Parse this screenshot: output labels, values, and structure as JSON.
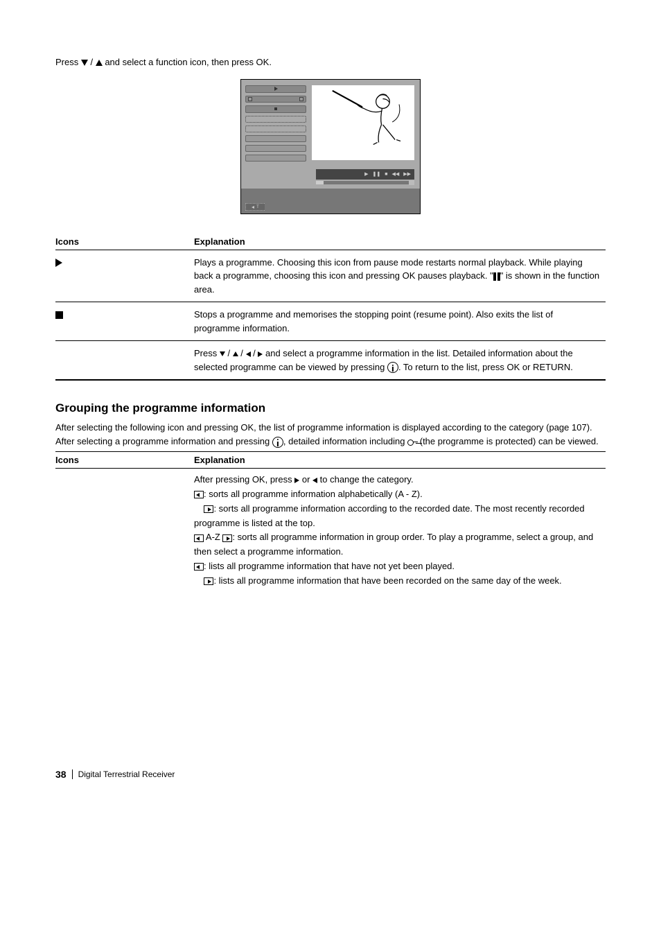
{
  "intro": {
    "line1_prefix": "Press ",
    "line1_suffix": " and select a function icon, then press OK.",
    "arrow1_name": "arrow-down",
    "arrow2_name": "arrow-up"
  },
  "table1": {
    "headers": [
      "Icons",
      "Explanation"
    ],
    "rows": [
      {
        "icon_html": "play",
        "text": "Plays a programme. Choosing this icon from pause mode restarts normal playback. While playing back a programme, choosing this icon and pressing OK pauses playback. \"",
        "text_suffix": "\" is shown in the function area."
      },
      {
        "icon_html": "stop",
        "text": "Stops a programme and memorises the stopping point (resume point). Also exits the list of programme information."
      },
      {
        "icon_html": "arrows",
        "text_prefix": "Press ",
        "text_mid": " and select a programme information in the list. Detailed information about the selected programme can be viewed by pressing ",
        "text_suffix": ". To return to the list, press OK or RETURN.",
        "info_name": "info-icon"
      }
    ]
  },
  "section_grouping": {
    "title": "Grouping the programme information",
    "para_prefix": "After selecting the following icon and pressing OK, the list of programme information is displayed according to the category (page 107). After selecting a programme information and pressing ",
    "para_mid": ", detailed information including ",
    "para_suffix": " (the programme is protected) can be viewed.",
    "info_name": "info-icon",
    "key_name": "key-icon"
  },
  "table2": {
    "headers": [
      "Icons",
      "Explanation"
    ],
    "rows": [
      {
        "lines": [
          {
            "segments": [
              {
                "type": "text",
                "value": "After pressing OK, press "
              },
              {
                "type": "arrow-right"
              },
              {
                "type": "text",
                "value": " or "
              },
              {
                "type": "arrow-left"
              },
              {
                "type": "text",
                "value": " to change the category."
              }
            ]
          },
          {
            "segments": [
              {
                "type": "box-left"
              },
              {
                "type": "text",
                "value": ": sorts all programme information alphabetically (A - Z)."
              }
            ]
          },
          {
            "segments": [
              {
                "type": "nbsp"
              },
              {
                "type": "box-right"
              },
              {
                "type": "text",
                "value": ": sorts all programme information according to the recorded date. The most recently recorded programme is listed at the top."
              }
            ]
          },
          {
            "segments": [
              {
                "type": "box-left"
              },
              {
                "type": "text",
                "value": " A-Z "
              },
              {
                "type": "box-right"
              },
              {
                "type": "text",
                "value": ": sorts all programme information in group order. To play a programme, select a group, and then select a programme information."
              }
            ]
          },
          {
            "segments": [
              {
                "type": "box-left"
              },
              {
                "type": "text",
                "value": ": lists all programme information that have not yet been played."
              }
            ]
          },
          {
            "segments": [
              {
                "type": "nbsp"
              },
              {
                "type": "box-right"
              },
              {
                "type": "text",
                "value": ": lists all programme information that have been recorded on the same day of the week."
              }
            ]
          }
        ]
      }
    ]
  },
  "footer": {
    "page": "38",
    "label": "Digital Terrestrial Receiver"
  },
  "colors": {
    "text": "#000000",
    "screenshot_bg": "#aaaaaa",
    "screenshot_dark": "#777777"
  }
}
